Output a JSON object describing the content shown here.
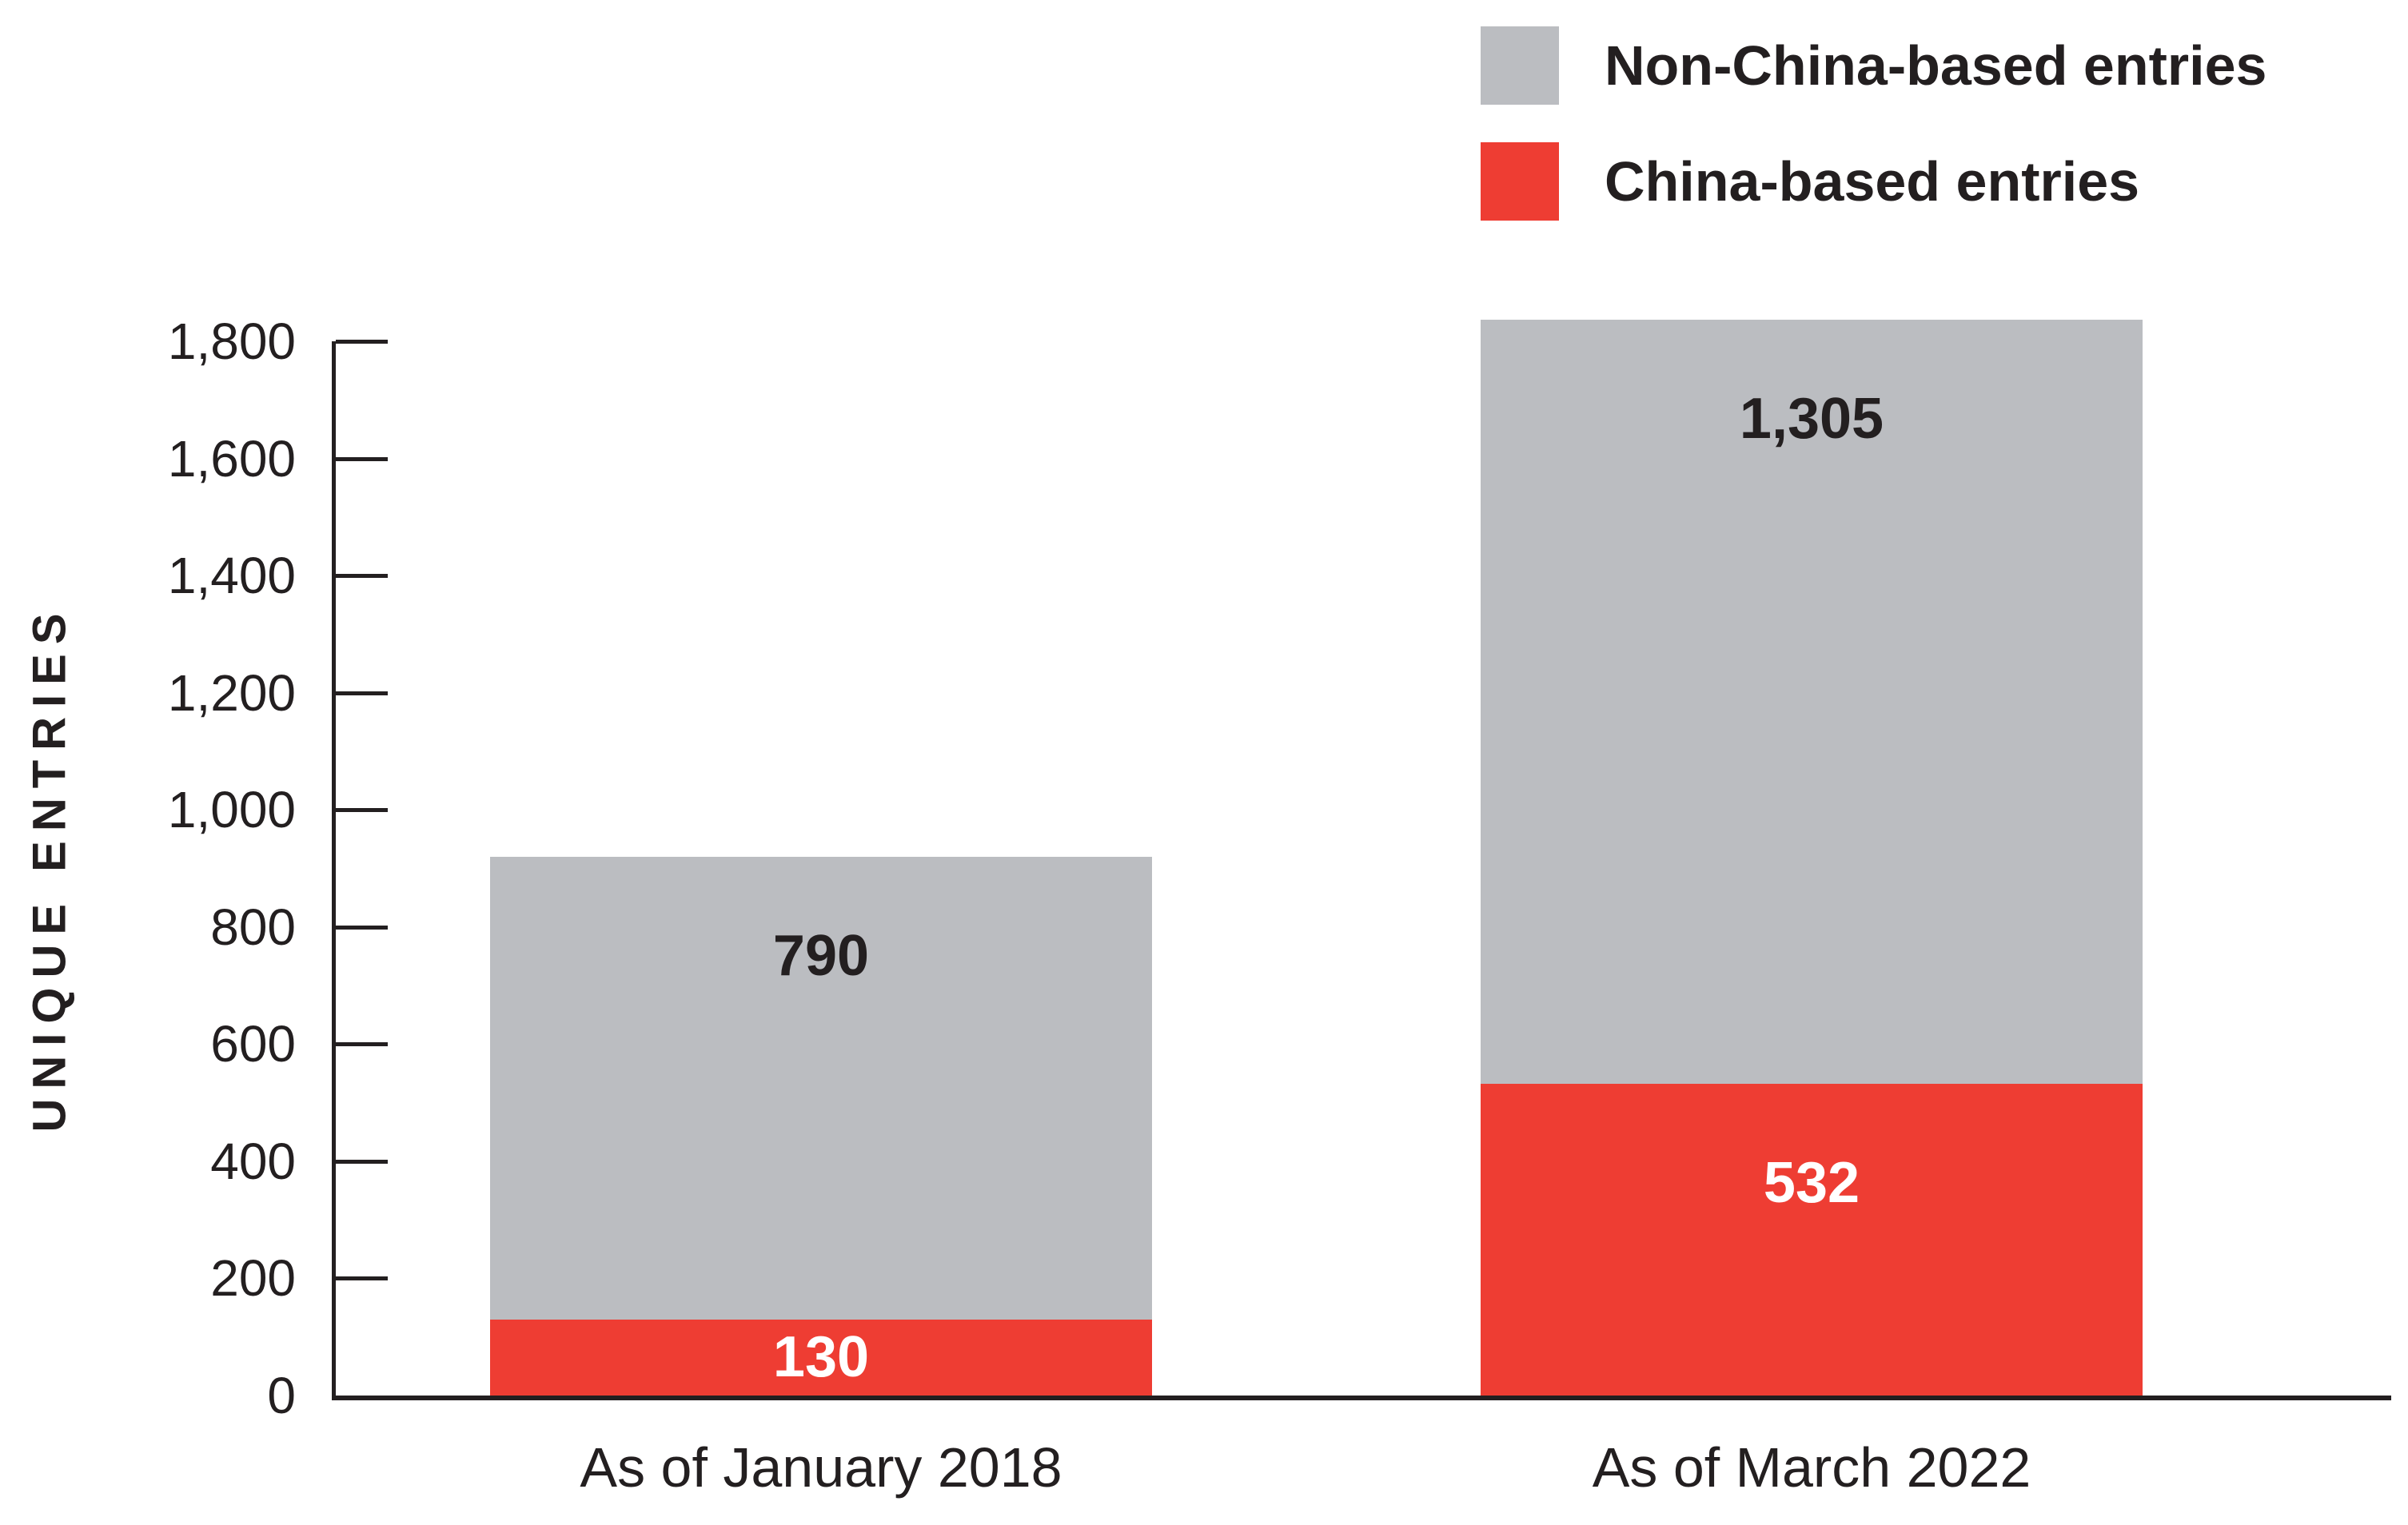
{
  "chart_data": {
    "type": "bar",
    "stacked": true,
    "title": "",
    "xlabel": "",
    "ylabel": "UNIQUE ENTRIES",
    "ylim": [
      0,
      1800
    ],
    "grid": false,
    "background": "#ffffff",
    "ink_color": "#231f20",
    "yticks": [
      {
        "value": 1800,
        "label": "1,800"
      },
      {
        "value": 1600,
        "label": "1,600"
      },
      {
        "value": 1400,
        "label": "1,400"
      },
      {
        "value": 1200,
        "label": "1,200"
      },
      {
        "value": 1000,
        "label": "1,000"
      },
      {
        "value": 800,
        "label": "800"
      },
      {
        "value": 600,
        "label": "600"
      },
      {
        "value": 400,
        "label": "400"
      },
      {
        "value": 200,
        "label": "200"
      },
      {
        "value": 0,
        "label": "0"
      }
    ],
    "categories": [
      "As of January 2018",
      "As of March 2022"
    ],
    "series": [
      {
        "name": "China-based entries",
        "color": "#ee3d33",
        "label_color": "#ffffff",
        "values": [
          130,
          532
        ],
        "value_labels": [
          "130",
          "532"
        ]
      },
      {
        "name": "Non-China-based entries",
        "color": "#bbbdc1",
        "label_color": "#231f20",
        "values": [
          790,
          1305
        ],
        "value_labels": [
          "790",
          "1,305"
        ]
      }
    ],
    "legend": {
      "position": "top-right",
      "entries": [
        {
          "label": "Non-China-based entries",
          "color": "#bbbdc1"
        },
        {
          "label": "China-based entries",
          "color": "#ee3d33"
        }
      ]
    }
  }
}
